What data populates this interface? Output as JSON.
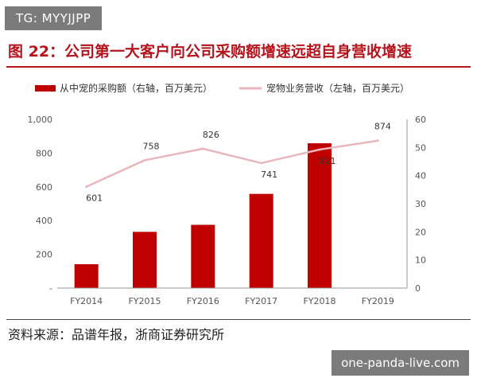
{
  "badge": "TG: MYYJJPP",
  "title": "图 22：公司第一大客户向公司采购额增速远超自身营收增速",
  "source": "资料来源：品谱年报，浙商证券研究所",
  "watermark": "one-panda-live.com",
  "colors": {
    "bar": "#c00000",
    "line": "#e8b7bb",
    "title": "#b5141c"
  },
  "chart_data": {
    "type": "bar",
    "categories": [
      "FY2014",
      "FY2015",
      "FY2016",
      "FY2017",
      "FY2018",
      "FY2019"
    ],
    "series": [
      {
        "name": "从中宠的采购额（右轴，百万美元）",
        "type": "bar",
        "axis": "right",
        "values": [
          8.5,
          20,
          22.5,
          33.5,
          51.5,
          null
        ]
      },
      {
        "name": "宠物业务营收（左轴，百万美元）",
        "type": "line",
        "axis": "left",
        "values": [
          601,
          758,
          826,
          741,
          821,
          874
        ],
        "labels": [
          "601",
          "758",
          "826",
          "741",
          "821",
          "874"
        ]
      }
    ],
    "y_left": {
      "ylim": [
        0,
        1000
      ],
      "ticks": [
        0,
        200,
        400,
        600,
        800,
        1000
      ],
      "tick_labels": [
        "-",
        "200",
        "400",
        "600",
        "800",
        "1,000"
      ]
    },
    "y_right": {
      "ylim": [
        0,
        60
      ],
      "ticks": [
        0,
        10,
        20,
        30,
        40,
        50,
        60
      ],
      "tick_labels": [
        "0",
        "10",
        "20",
        "30",
        "40",
        "50",
        "60"
      ]
    },
    "grid": false,
    "legend": "top"
  }
}
